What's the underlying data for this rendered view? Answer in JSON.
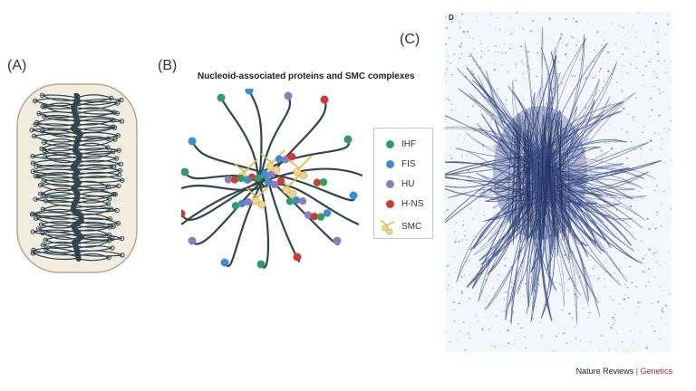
{
  "panels": {
    "a": {
      "label": "(A)"
    },
    "b": {
      "label": "(B)",
      "title": "Nucleoid-associated proteins and SMC complexes"
    },
    "c": {
      "label": "(C)",
      "inset_label": "D"
    }
  },
  "legend": [
    {
      "label": "IHF",
      "color": "#2e9e62",
      "shape": "dot"
    },
    {
      "label": "FIS",
      "color": "#3b8fd0",
      "shape": "dot"
    },
    {
      "label": "HU",
      "color": "#8e7cc3",
      "shape": "dot"
    },
    {
      "label": "H-NS",
      "color": "#d23b2f",
      "shape": "dot"
    },
    {
      "label": "SMC",
      "color": "#f2d58a",
      "shape": "smc-icon"
    }
  ],
  "credit": {
    "journal": "Nature Reviews",
    "separator": "|",
    "section": "Genetics"
  },
  "colors": {
    "dna_strand": "#2f4550",
    "cell_fill": "#f3ede0",
    "cell_border": "#b9a48c",
    "micrograph_strand": "#3d4f88",
    "smc": "#f2d58a"
  }
}
